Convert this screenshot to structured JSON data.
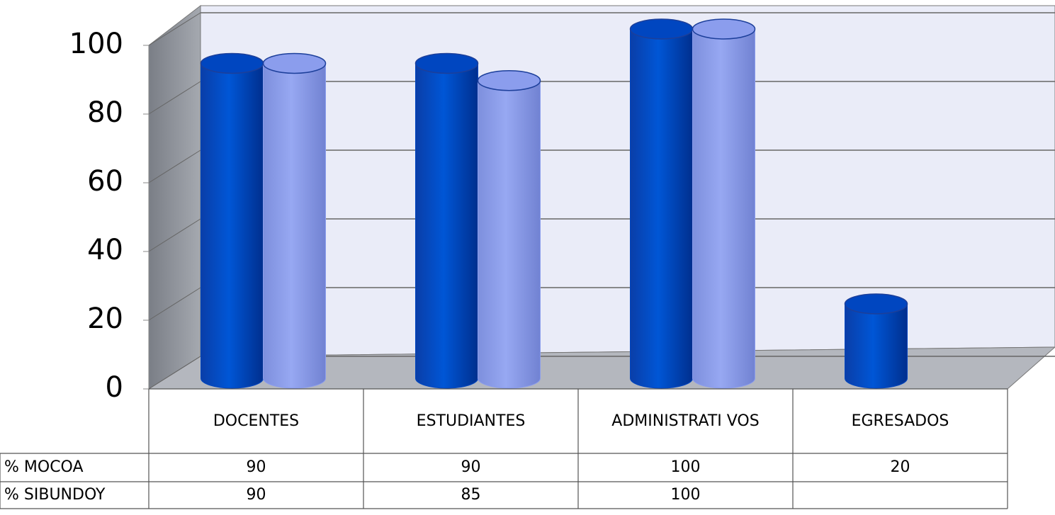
{
  "chart_data": {
    "type": "bar3d",
    "categories": [
      "DOCENTES",
      "ESTUDIANTES",
      "ADMINISTRATI VOS",
      "EGRESADOS"
    ],
    "series": [
      {
        "name": "% MOCOA",
        "color": "#0046c0",
        "values": [
          90,
          90,
          100,
          20
        ]
      },
      {
        "name": "% SIBUNDOY",
        "color": "#8b9ded",
        "values": [
          90,
          85,
          100,
          null
        ]
      }
    ],
    "ylim": [
      0,
      100
    ],
    "yticks": [
      0,
      20,
      40,
      60,
      80,
      100
    ],
    "grid": true,
    "data_table": true
  }
}
